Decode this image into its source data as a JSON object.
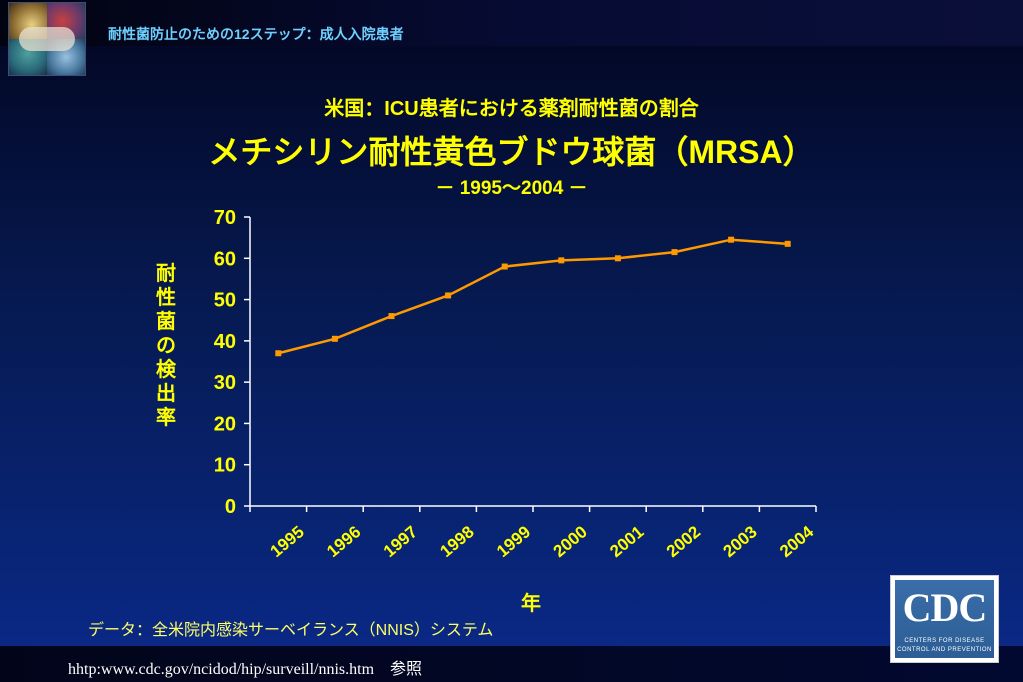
{
  "header": {
    "title": "耐性菌防止のための12ステップ：成人入院患者"
  },
  "chart_data": {
    "type": "line",
    "title_line1": "米国：ICU患者における薬剤耐性菌の割合",
    "title_line2": "メチシリン耐性黄色ブドウ球菌（MRSA）",
    "title_line3": "－ 1995～2004 －",
    "xlabel": "年",
    "ylabel": "耐性菌の検出率",
    "categories": [
      "1995",
      "1996",
      "1997",
      "1998",
      "1999",
      "2000",
      "2001",
      "2002",
      "2003",
      "2004"
    ],
    "series": [
      {
        "name": "MRSA",
        "values": [
          37,
          40.5,
          46,
          51,
          58,
          59.5,
          60,
          61.5,
          64.5,
          63.5
        ]
      }
    ],
    "yticks": [
      "0",
      "10",
      "20",
      "30",
      "40",
      "50",
      "60",
      "70"
    ],
    "ylim": [
      0,
      70
    ],
    "colors": {
      "line": "#ff9900",
      "marker": "#ff9900",
      "axis": "#ffffff",
      "text": "#ffff00"
    }
  },
  "footer": {
    "source": "データ：全米院内感染サーベイランス（NNIS）システム",
    "url": "hhtp:www.cdc.gov/ncidod/hip/surveill/nnis.htm　参照"
  },
  "cdc_logo": {
    "letters": "CDC",
    "line1": "CENTERS FOR DISEASE",
    "line2": "CONTROL AND PREVENTION"
  }
}
